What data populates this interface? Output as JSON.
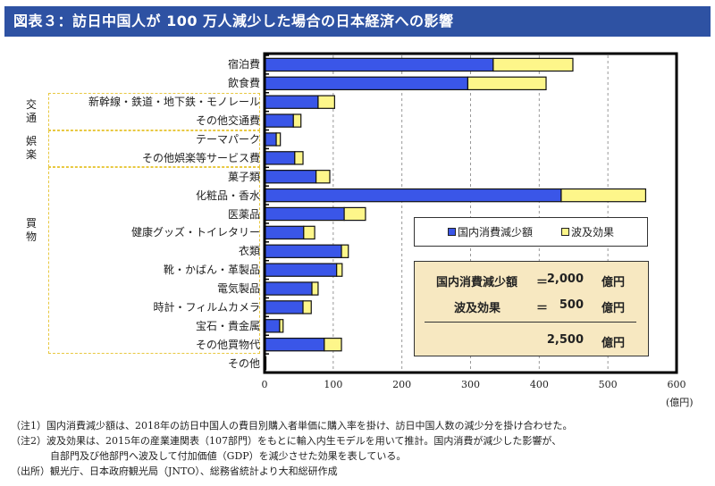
{
  "title": "図表３：訪日中国人が 100 万人減少した場合の日本経済への影響",
  "chart_data": {
    "type": "bar",
    "orientation": "horizontal",
    "stacked": true,
    "title": "訪日中国人が 100 万人減少した場合の日本経済への影響",
    "xlabel": "",
    "unit": "(億円)",
    "xlim": [
      0,
      600
    ],
    "xticks": [
      "0",
      "100",
      "200",
      "300",
      "400",
      "500",
      "600"
    ],
    "grid": true,
    "legend_position": "center-right",
    "categories": [
      "宿泊費",
      "飲食費",
      "新幹線・鉄道・地下鉄・モノレール",
      "その他交通費",
      "テーマパーク",
      "その他娯楽等サービス費",
      "菓子類",
      "化粧品・香水",
      "医薬品",
      "健康グッズ・トイレタリー",
      "衣類",
      "靴・かばん・革製品",
      "電気製品",
      "時計・フィルムカメラ",
      "宝石・貴金属",
      "その他買物代",
      "その他"
    ],
    "series": [
      {
        "name": "国内消費減少額",
        "color": "#3a56e8",
        "values": [
          333,
          296,
          78,
          42,
          17,
          44,
          75,
          432,
          116,
          57,
          112,
          105,
          69,
          56,
          22,
          87,
          2
        ]
      },
      {
        "name": "波及効果",
        "color": "#fdf68a",
        "values": [
          116,
          114,
          24,
          11,
          6,
          12,
          20,
          123,
          31,
          16,
          10,
          8,
          9,
          12,
          5,
          25,
          0
        ]
      }
    ],
    "groups": [
      {
        "label": "交通",
        "members": [
          "新幹線・鉄道・地下鉄・モノレール",
          "その他交通費"
        ]
      },
      {
        "label": "娯楽",
        "members": [
          "テーマパーク",
          "その他娯楽等サービス費"
        ]
      },
      {
        "label": "買物",
        "members": [
          "菓子類",
          "化粧品・香水",
          "医薬品",
          "健康グッズ・トイレタリー",
          "衣類",
          "靴・かばん・革製品",
          "電気製品",
          "時計・フィルムカメラ",
          "宝石・貴金属",
          "その他買物代"
        ]
      }
    ]
  },
  "legend": {
    "domestic": "国内消費減少額",
    "ripple": "波及効果"
  },
  "summary": {
    "row1_label": "国内消費減少額",
    "row1_eq": "＝",
    "row1_value": "2,000",
    "row1_unit": "億円",
    "row2_label": "波及効果",
    "row2_eq": "＝",
    "row2_value": "500",
    "row2_unit": "億円",
    "total_value": "2,500",
    "total_unit": "億円"
  },
  "notes": [
    "（注1）国内消費減少額は、2018年の訪日中国人の費目別購入者単価に購入率を掛け、訪日中国人数の減少分を掛け合わせた。",
    "（注2）波及効果は、2015年の産業連関表（107部門）をもとに輸入内生モデルを用いて推計。国内消費が減少した影響が、",
    "　　　　自部門及び他部門へ波及して付加価値（GDP）を減少させた効果を表している。",
    "（出所）観光庁、日本政府観光局（JNTO）、総務省統計より大和総研作成"
  ]
}
